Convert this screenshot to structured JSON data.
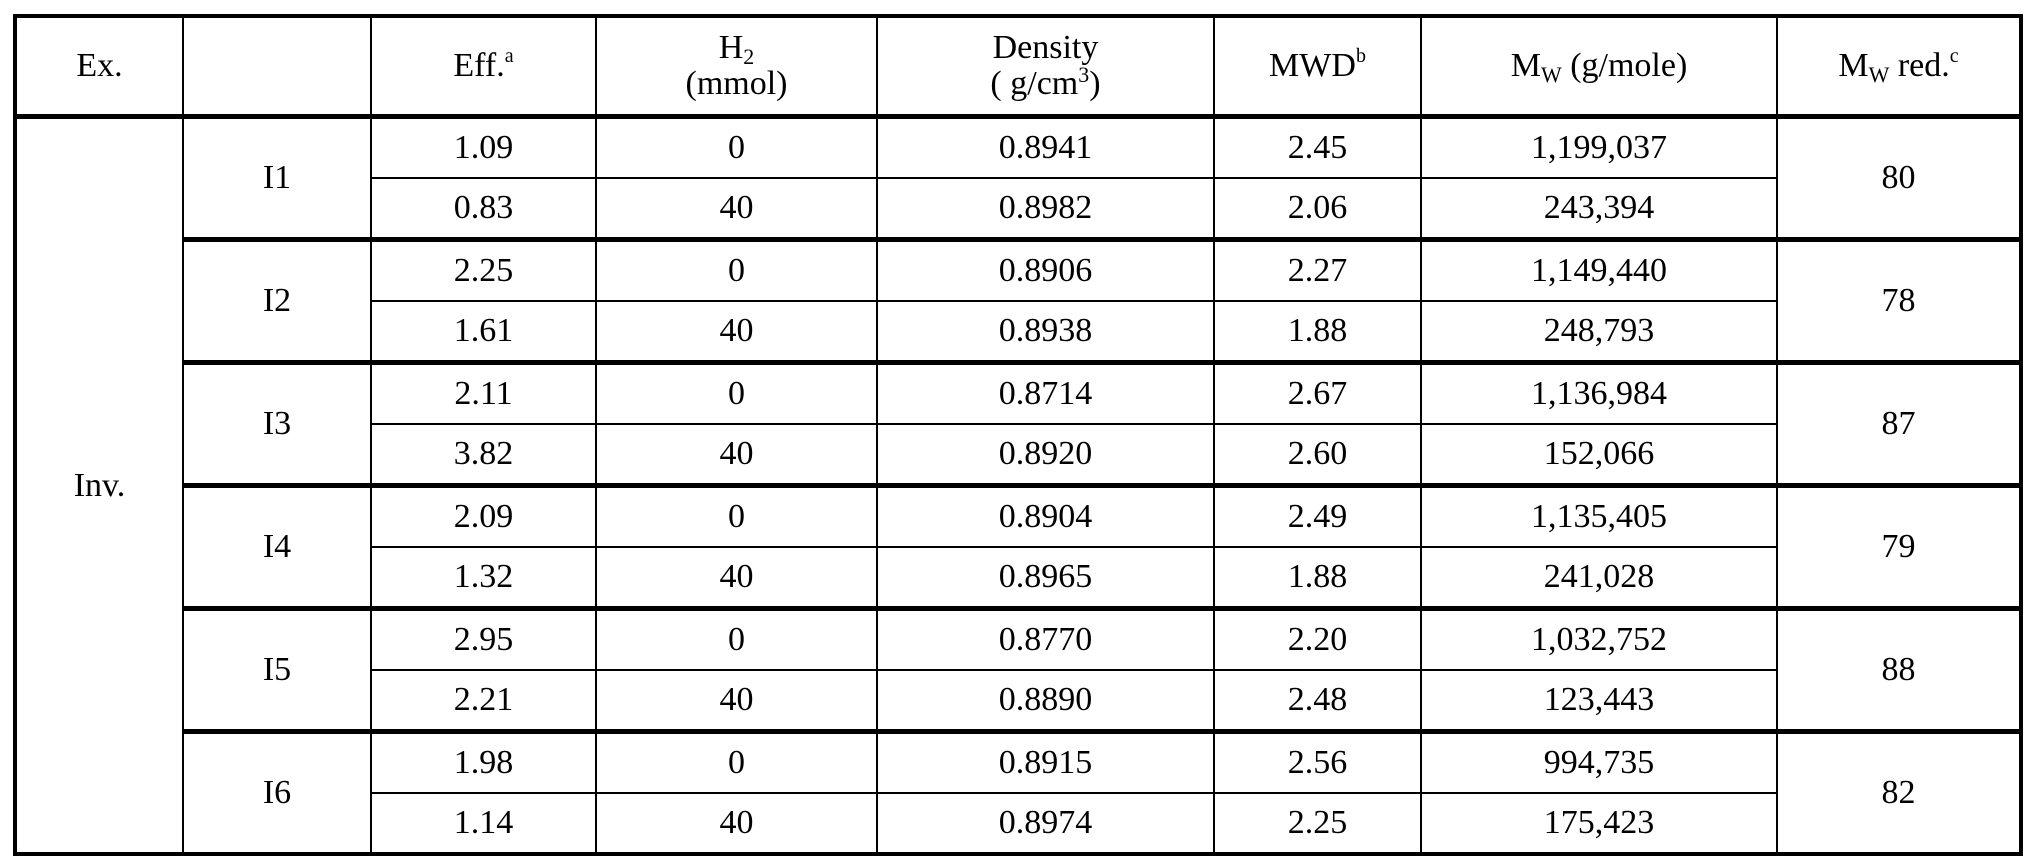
{
  "header": {
    "ex": "Ex.",
    "eff": "Eff.",
    "eff_note": "a",
    "h2_symbol": "H",
    "h2_sub": "2",
    "h2_unit": "(mmol)",
    "density": "Density",
    "density_unit": "( g/cm",
    "density_exp": "3",
    "density_close": ")",
    "mwd": "MWD",
    "mwd_note": "b",
    "mw": "M",
    "mw_sub": "W",
    "mw_unit": " (g/mole)",
    "mwred": "M",
    "mwred_sub": "W",
    "mwred_text": " red.",
    "mwred_note": "c"
  },
  "table": {
    "label": "Inv.",
    "groups": [
      {
        "id": "I1",
        "mw_red": "80",
        "runs": [
          [
            "1.09",
            "0",
            "0.8941",
            "2.45",
            "1,199,037"
          ],
          [
            "0.83",
            "40",
            "0.8982",
            "2.06",
            "243,394"
          ]
        ]
      },
      {
        "id": "I2",
        "mw_red": "78",
        "runs": [
          [
            "2.25",
            "0",
            "0.8906",
            "2.27",
            "1,149,440"
          ],
          [
            "1.61",
            "40",
            "0.8938",
            "1.88",
            "248,793"
          ]
        ]
      },
      {
        "id": "I3",
        "mw_red": "87",
        "runs": [
          [
            "2.11",
            "0",
            "0.8714",
            "2.67",
            "1,136,984"
          ],
          [
            "3.82",
            "40",
            "0.8920",
            "2.60",
            "152,066"
          ]
        ]
      },
      {
        "id": "I4",
        "mw_red": "79",
        "runs": [
          [
            "2.09",
            "0",
            "0.8904",
            "2.49",
            "1,135,405"
          ],
          [
            "1.32",
            "40",
            "0.8965",
            "1.88",
            "241,028"
          ]
        ]
      },
      {
        "id": "I5",
        "mw_red": "88",
        "runs": [
          [
            "2.95",
            "0",
            "0.8770",
            "2.20",
            "1,032,752"
          ],
          [
            "2.21",
            "40",
            "0.8890",
            "2.48",
            "123,443"
          ]
        ]
      },
      {
        "id": "I6",
        "mw_red": "82",
        "runs": [
          [
            "1.98",
            "0",
            "0.8915",
            "2.56",
            "994,735"
          ],
          [
            "1.14",
            "40",
            "0.8974",
            "2.25",
            "175,423"
          ]
        ]
      }
    ]
  }
}
